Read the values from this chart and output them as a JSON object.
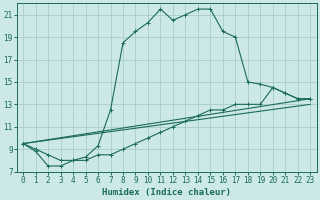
{
  "xlabel": "Humidex (Indice chaleur)",
  "xlim": [
    -0.5,
    23.5
  ],
  "ylim": [
    7,
    22
  ],
  "yticks": [
    7,
    9,
    11,
    13,
    15,
    17,
    19,
    21
  ],
  "xticks": [
    0,
    1,
    2,
    3,
    4,
    5,
    6,
    7,
    8,
    9,
    10,
    11,
    12,
    13,
    14,
    15,
    16,
    17,
    18,
    19,
    20,
    21,
    22,
    23
  ],
  "bg_color": "#cce8e8",
  "grid_color": "#aacccc",
  "line_color": "#1a6b5a",
  "line1_x": [
    0,
    1,
    2,
    3,
    4,
    5,
    6,
    7,
    8,
    9,
    10,
    11,
    12,
    13,
    14,
    15,
    16,
    17,
    18,
    19,
    20,
    21,
    22,
    23
  ],
  "line1_y": [
    9.5,
    8.8,
    7.5,
    7.5,
    8.0,
    8.3,
    9.3,
    12.5,
    18.5,
    19.5,
    20.3,
    21.5,
    20.5,
    21.0,
    21.5,
    21.5,
    19.5,
    19.0,
    15.0,
    14.8,
    14.5,
    14.0,
    13.5,
    13.5
  ],
  "line2_x": [
    0,
    1,
    2,
    3,
    4,
    5,
    6,
    7,
    8,
    9,
    10,
    11,
    12,
    13,
    14,
    15,
    16,
    17,
    18,
    19,
    20,
    21,
    22,
    23
  ],
  "line2_y": [
    9.5,
    9.0,
    8.5,
    8.0,
    8.0,
    8.0,
    8.5,
    8.5,
    9.0,
    9.5,
    10.0,
    10.5,
    11.0,
    11.5,
    12.0,
    12.5,
    12.5,
    13.0,
    13.0,
    13.0,
    14.5,
    14.0,
    13.5,
    13.5
  ],
  "line3_x": [
    0,
    23
  ],
  "line3_y": [
    9.5,
    13.5
  ],
  "line4_x": [
    0,
    23
  ],
  "line4_y": [
    9.5,
    13.0
  ]
}
